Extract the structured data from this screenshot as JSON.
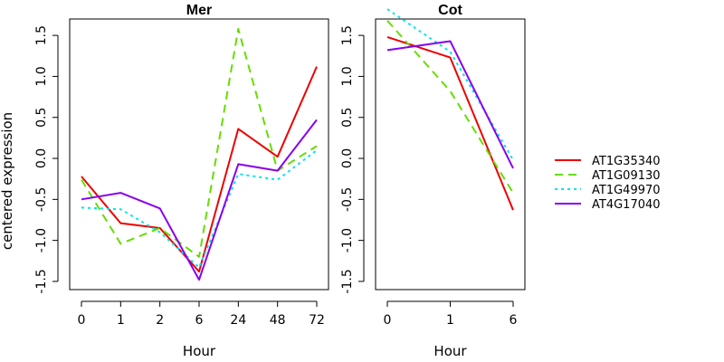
{
  "figure": {
    "ylabel": "centered expression",
    "legend_position": "right"
  },
  "series_styles": [
    {
      "name": "AT1G35340",
      "color": "#ee0000",
      "dash": "solid"
    },
    {
      "name": "AT1G09130",
      "color": "#66dd00",
      "dash": "dashed"
    },
    {
      "name": "AT1G49970",
      "color": "#00e5ee",
      "dash": "dotted"
    },
    {
      "name": "AT4G17040",
      "color": "#8800ee",
      "dash": "solid"
    }
  ],
  "chart_data": [
    {
      "type": "line",
      "title": "Mer",
      "xlabel": "Hour",
      "ylabel": "centered expression",
      "categories": [
        "0",
        "1",
        "2",
        "6",
        "24",
        "48",
        "72"
      ],
      "ylim": [
        -1.6,
        1.7
      ],
      "yticks": [
        -1.5,
        -1.0,
        -0.5,
        0.0,
        0.5,
        1.0,
        1.5
      ],
      "ytick_labels": [
        "-1.5",
        "-1.0",
        "-0.5",
        "0.0",
        "0.5",
        "1.0",
        "1.5"
      ],
      "grid": false,
      "series": [
        {
          "name": "AT1G35340",
          "values": [
            -0.22,
            -0.79,
            -0.85,
            -1.38,
            0.36,
            0.02,
            1.12
          ]
        },
        {
          "name": "AT1G09130",
          "values": [
            -0.26,
            -1.04,
            -0.85,
            -1.2,
            1.58,
            -0.15,
            0.15
          ]
        },
        {
          "name": "AT1G49970",
          "values": [
            -0.6,
            -0.62,
            -0.9,
            -1.33,
            -0.19,
            -0.26,
            0.1
          ]
        },
        {
          "name": "AT4G17040",
          "values": [
            -0.5,
            -0.42,
            -0.61,
            -1.48,
            -0.07,
            -0.15,
            0.47
          ]
        }
      ]
    },
    {
      "type": "line",
      "title": "Cot",
      "xlabel": "Hour",
      "categories": [
        "0",
        "1",
        "6"
      ],
      "ylim": [
        -1.6,
        1.7
      ],
      "yticks": [
        -1.5,
        -1.0,
        -0.5,
        0.0,
        0.5,
        1.0,
        1.5
      ],
      "ytick_labels": [
        "-1.5",
        "-1.0",
        "-0.5",
        "0.0",
        "0.5",
        "1.0",
        "1.5"
      ],
      "grid": false,
      "series": [
        {
          "name": "AT1G35340",
          "values": [
            1.48,
            1.23,
            -0.63
          ]
        },
        {
          "name": "AT1G09130",
          "values": [
            1.68,
            0.82,
            -0.42
          ]
        },
        {
          "name": "AT1G49970",
          "values": [
            1.82,
            1.3,
            -0.02
          ]
        },
        {
          "name": "AT4G17040",
          "values": [
            1.32,
            1.43,
            -0.12
          ]
        }
      ]
    }
  ]
}
